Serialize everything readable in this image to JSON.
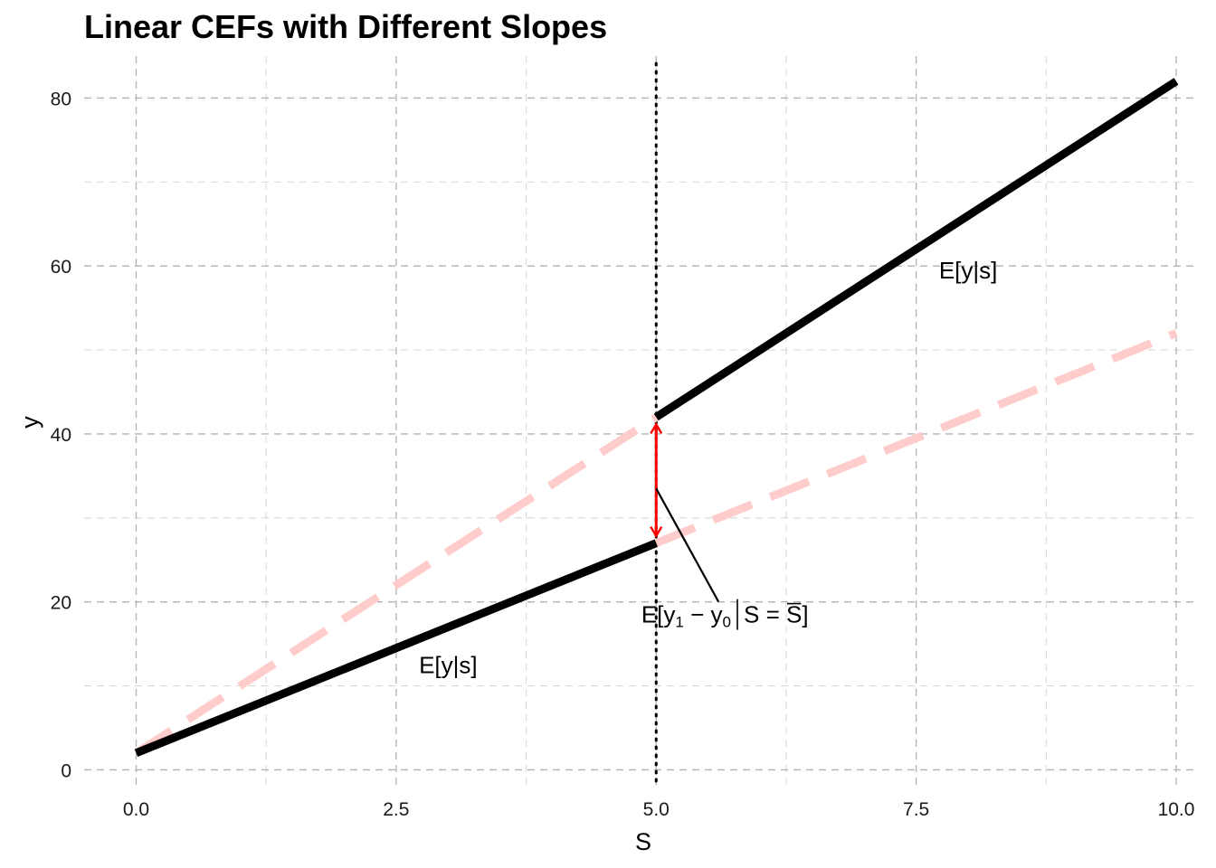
{
  "chart_data": {
    "type": "line",
    "title": "Linear CEFs with Different Slopes",
    "xlabel": "S",
    "ylabel": "y",
    "xlim": [
      -0.5,
      10.2
    ],
    "ylim": [
      -2,
      85
    ],
    "x_ticks": [
      0,
      2.5,
      5,
      7.5,
      10
    ],
    "x_tick_labels": [
      "0.0",
      "2.5",
      "5.0",
      "7.5",
      "10.0"
    ],
    "y_ticks": [
      0,
      20,
      40,
      60,
      80
    ],
    "y_tick_labels": [
      "0",
      "20",
      "40",
      "60",
      "80"
    ],
    "grid": true,
    "series": [
      {
        "style": "solid",
        "color": "#000000",
        "x": [
          0,
          5
        ],
        "y": [
          2,
          27
        ]
      },
      {
        "style": "solid",
        "color": "#000000",
        "x": [
          5,
          10
        ],
        "y": [
          42,
          82
        ]
      },
      {
        "style": "dashed",
        "color": "#ffcccc",
        "x": [
          0,
          5
        ],
        "y": [
          2,
          42
        ]
      },
      {
        "style": "dashed",
        "color": "#ffcccc",
        "x": [
          5,
          10
        ],
        "y": [
          27,
          52
        ]
      }
    ],
    "cutoff": {
      "x": 5,
      "style": "dotted",
      "color": "#000000"
    },
    "effect_arrow": {
      "x": 5,
      "y_from": 27,
      "y_to": 42,
      "color": "#ff0000"
    },
    "annotations": [
      {
        "text": "E[y|s]",
        "x": 3.0,
        "y": 12.5
      },
      {
        "text": "E[y|s]",
        "x": 8.0,
        "y": 59.5
      }
    ],
    "effect_label": {
      "parts": [
        "E[y",
        "1",
        " − y",
        "0",
        "S = ",
        "S",
        "]"
      ],
      "x": 5.6,
      "y": 18.5,
      "pointer_from": [
        5.6,
        20
      ],
      "pointer_to": [
        5.0,
        33.5
      ]
    }
  }
}
